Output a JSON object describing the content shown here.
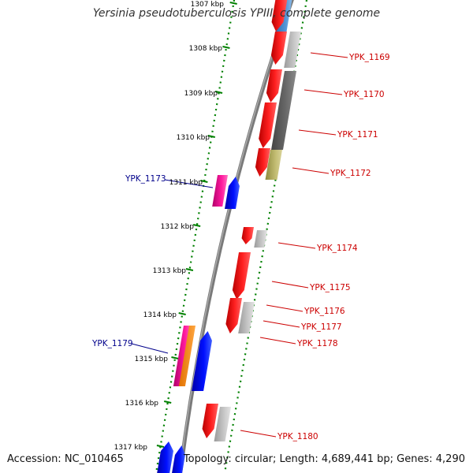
{
  "title": "Yersinia pseudotuberculosis YPIII, complete genome",
  "accession": "Accession: NC_010465",
  "topology": "Topology: circular; Length: 4,689,441 bp; Genes: 4,290",
  "ticks": [
    "1307 kbp",
    "1308 kbp",
    "1309 kbp",
    "1310 kbp",
    "1311 kbp",
    "1312 kbp",
    "1313 kbp",
    "1314 kbp",
    "1315 kbp",
    "1316 kbp",
    "1317 kbp"
  ],
  "labels_right": [
    "YPK_1169",
    "YPK_1170",
    "YPK_1171",
    "YPK_1172",
    "YPK_1174",
    "YPK_1175",
    "YPK_1176",
    "YPK_1177",
    "YPK_1178",
    "YPK_1180"
  ],
  "labels_left": [
    "YPK_1173",
    "YPK_1179"
  ],
  "colors": {
    "forward_label": "#cc0000",
    "reverse_label": "#00008b",
    "red_gene": "#ff0000",
    "blue_gene": "#0000ff",
    "magenta_gene": "#ff1a9e",
    "grey_gene": "#b8b8b8",
    "dark_grey_gene": "#666666",
    "olive_gene": "#bdb76b",
    "steel_gene": "#4f8fcf",
    "tick_green": "#008000",
    "backbone": "#808080"
  }
}
